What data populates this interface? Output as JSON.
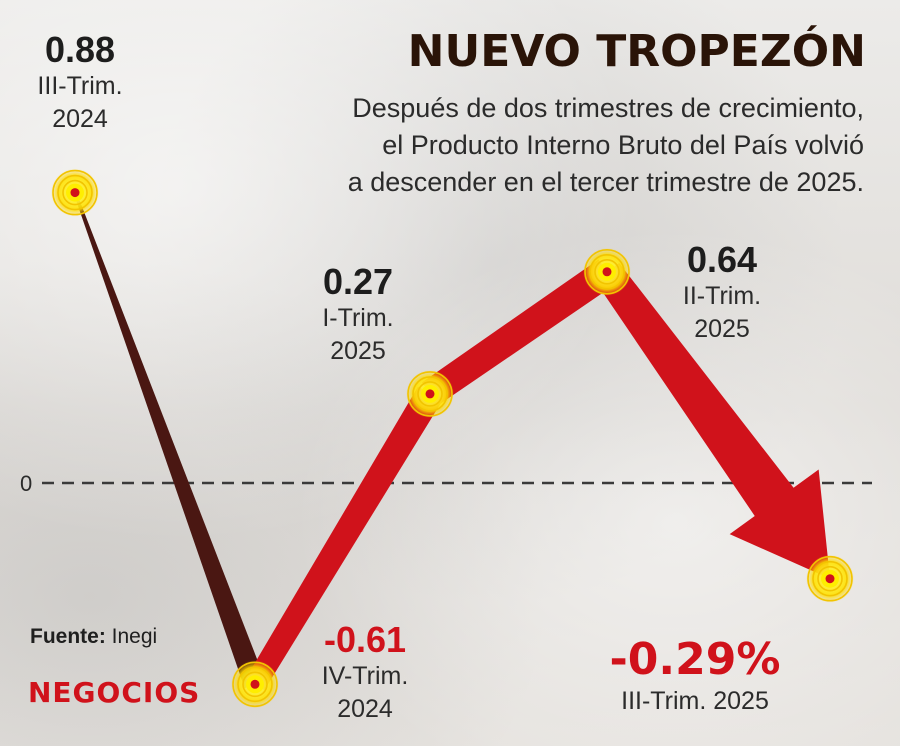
{
  "header": {
    "title": "NUEVO TROPEZÓN",
    "subtitle_lines": [
      "Después de dos trimestres de crecimiento,",
      "el Producto Interno Bruto del País volvió",
      "a descender en el tercer trimestre de 2025."
    ]
  },
  "footer": {
    "source_label": "Fuente:",
    "source_value": "Inegi",
    "brand": "NEGOCIOS"
  },
  "colors": {
    "red": "#d0121b",
    "dark_brown": "#4a1712",
    "title": "#2a1408"
  },
  "chart_data": {
    "type": "line",
    "categories": [
      "III-Trim. 2024",
      "IV-Trim. 2024",
      "I-Trim. 2025",
      "II-Trim. 2025",
      "III-Trim. 2025"
    ],
    "values": [
      0.88,
      -0.61,
      0.27,
      0.64,
      -0.29
    ],
    "data_labels": [
      "0.88",
      "-0.61",
      "0.27",
      "0.64",
      "-0.29%"
    ],
    "label_quarters": [
      "III-Trim.",
      "IV-Trim.",
      "I-Trim.",
      "II-Trim.",
      "III-Trim. 2025"
    ],
    "label_years": [
      "2024",
      "2024",
      "2025",
      "2025",
      ""
    ],
    "reference_line": {
      "value": 0,
      "label": "0"
    },
    "title": "NUEVO TROPEZÓN",
    "xlabel": "",
    "ylabel": "",
    "grid": false,
    "legend": "none"
  }
}
